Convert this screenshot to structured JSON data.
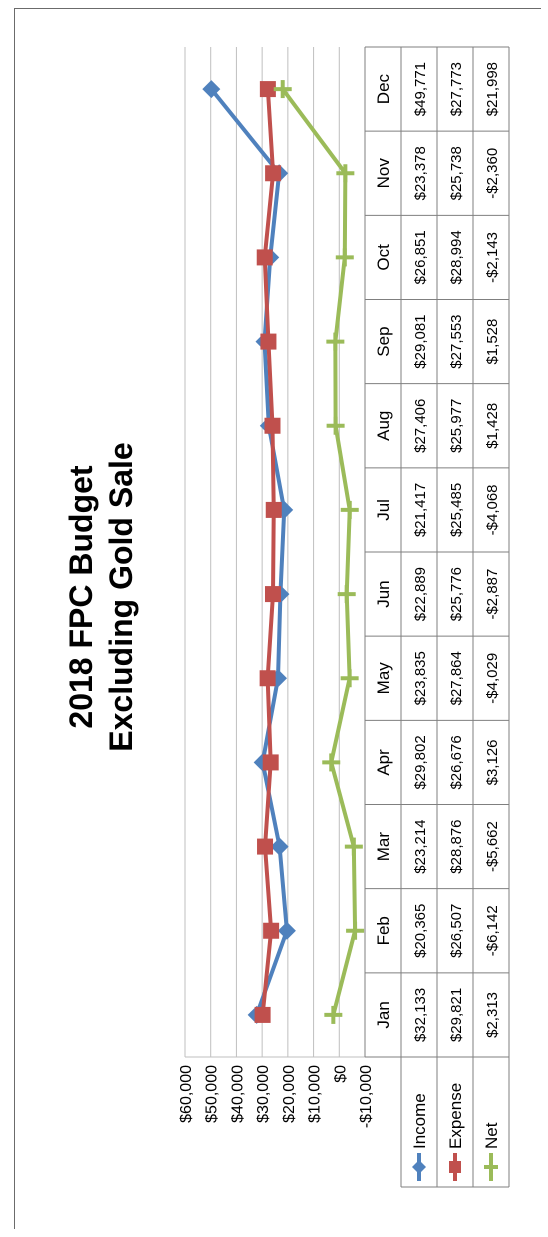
{
  "colors": {
    "income": "#4f81bd",
    "expense": "#c0504d",
    "net": "#9bbb59",
    "grid": "#bfbfbf",
    "table_border": "#7f7f7f"
  },
  "chart_data": {
    "type": "line",
    "title": "2018 FPC Budget",
    "subtitle": "Excluding Gold Sale",
    "categories": [
      "Jan",
      "Feb",
      "Mar",
      "Apr",
      "May",
      "Jun",
      "Jul",
      "Aug",
      "Sep",
      "Oct",
      "Nov",
      "Dec"
    ],
    "ylim": [
      -10000,
      60000
    ],
    "y_ticks": [
      60000,
      50000,
      40000,
      30000,
      20000,
      10000,
      0,
      -10000
    ],
    "y_tick_labels": [
      "$60,000",
      "$50,000",
      "$40,000",
      "$30,000",
      "$20,000",
      "$10,000",
      "$0",
      "-$10,000"
    ],
    "grid": true,
    "legend": "data-table",
    "series": [
      {
        "name": "Income",
        "marker": "diamond",
        "color": "#4f81bd",
        "values": [
          32133,
          20365,
          23214,
          29802,
          23835,
          22889,
          21417,
          27406,
          29081,
          26851,
          23378,
          49771
        ],
        "labels": [
          "$32,133",
          "$20,365",
          "$23,214",
          "$29,802",
          "$23,835",
          "$22,889",
          "$21,417",
          "$27,406",
          "$29,081",
          "$26,851",
          "$23,378",
          "$49,771"
        ]
      },
      {
        "name": "Expense",
        "marker": "square",
        "color": "#c0504d",
        "values": [
          29821,
          26507,
          28876,
          26676,
          27864,
          25776,
          25485,
          25977,
          27553,
          28994,
          25738,
          27773
        ],
        "labels": [
          "$29,821",
          "$26,507",
          "$28,876",
          "$26,676",
          "$27,864",
          "$25,776",
          "$25,485",
          "$25,977",
          "$27,553",
          "$28,994",
          "$25,738",
          "$27,773"
        ]
      },
      {
        "name": "Net",
        "marker": "cross",
        "color": "#9bbb59",
        "values": [
          2313,
          -6142,
          -5662,
          3126,
          -4029,
          -2887,
          -4068,
          1428,
          1528,
          -2143,
          -2360,
          21998
        ],
        "labels": [
          "$2,313",
          "-$6,142",
          "-$5,662",
          "$3,126",
          "-$4,029",
          "-$2,887",
          "-$4,068",
          "$1,428",
          "$1,528",
          "-$2,143",
          "-$2,360",
          "$21,998"
        ]
      }
    ]
  }
}
